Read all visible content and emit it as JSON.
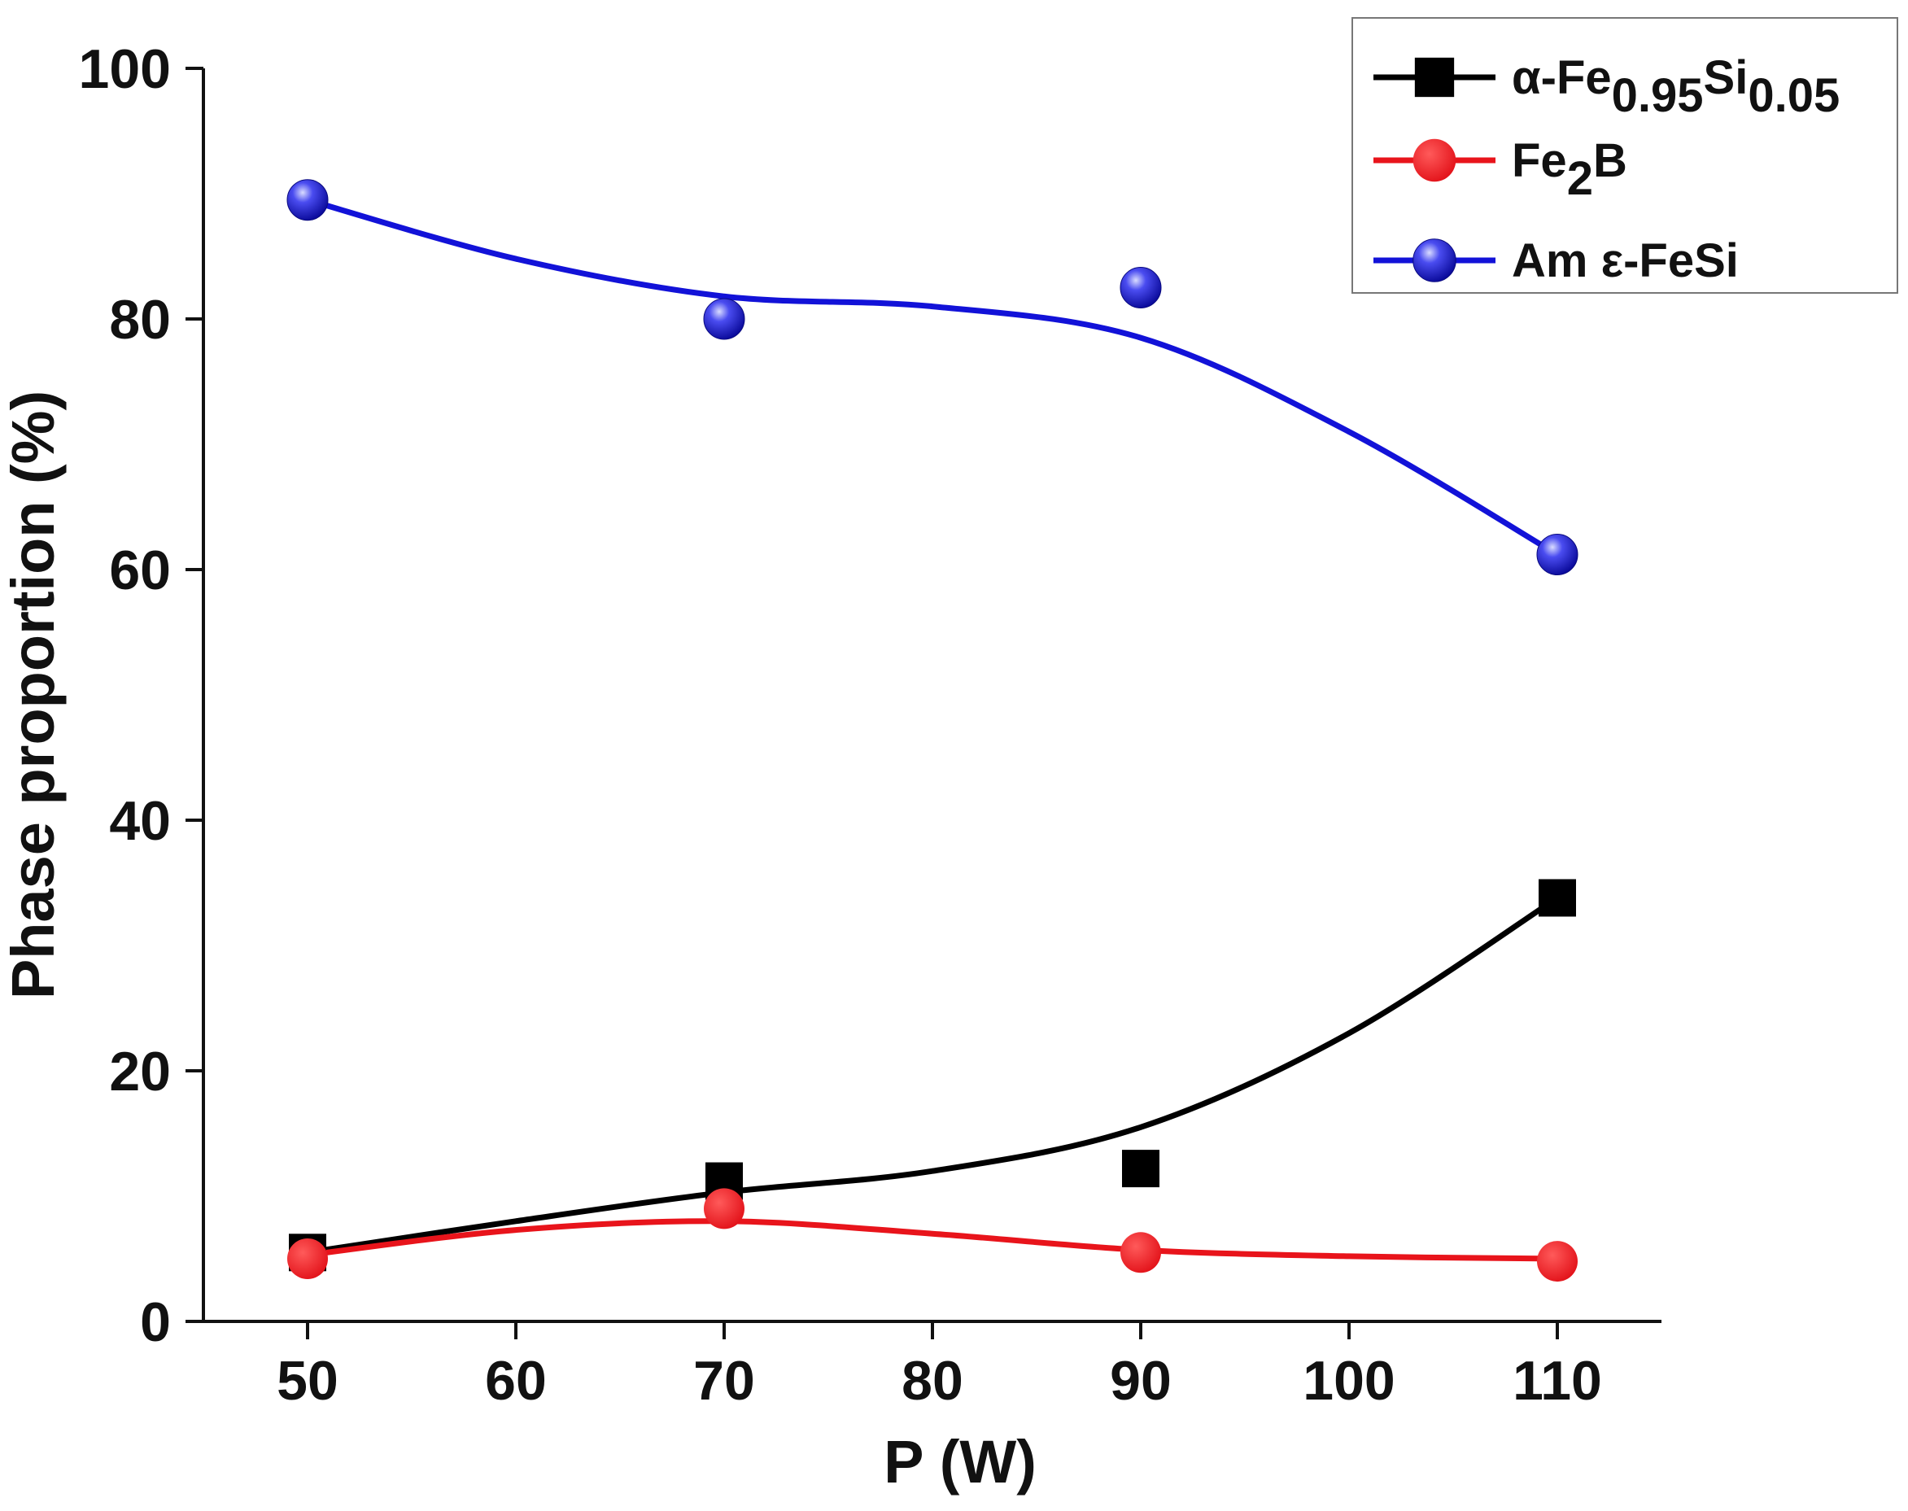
{
  "chart_data": {
    "type": "line",
    "title": "",
    "xlabel": "P (W)",
    "ylabel": "Phase proportion (%)",
    "xlim": [
      45,
      115
    ],
    "ylim": [
      0,
      100
    ],
    "xticks": [
      50,
      60,
      70,
      80,
      90,
      100,
      110
    ],
    "yticks": [
      0,
      20,
      40,
      60,
      80,
      100
    ],
    "grid": false,
    "legend_position": "top-right",
    "x": [
      50,
      70,
      90,
      110
    ],
    "series": [
      {
        "name": "α-Fe0.95Si0.05",
        "legend_parts": [
          {
            "text": "α-Fe",
            "sub": ""
          },
          {
            "text": "",
            "sub": "0.95"
          },
          {
            "text": "Si",
            "sub": ""
          },
          {
            "text": "",
            "sub": "0.05"
          }
        ],
        "marker": "square",
        "color": "#000000",
        "values": [
          5.5,
          11.2,
          12.2,
          33.8
        ],
        "fit_curve": [
          [
            50,
            5.5
          ],
          [
            60,
            8.0
          ],
          [
            70,
            10.3
          ],
          [
            80,
            12.0
          ],
          [
            90,
            15.5
          ],
          [
            100,
            23.0
          ],
          [
            110,
            33.8
          ]
        ]
      },
      {
        "name": "Fe2B",
        "legend_parts": [
          {
            "text": "Fe",
            "sub": ""
          },
          {
            "text": "",
            "sub": "2"
          },
          {
            "text": "B",
            "sub": ""
          }
        ],
        "marker": "circle",
        "color": "#e8141b",
        "values": [
          5.0,
          9.0,
          5.5,
          4.8
        ],
        "fit_curve": [
          [
            50,
            5.3
          ],
          [
            60,
            7.3
          ],
          [
            70,
            8.0
          ],
          [
            80,
            7.0
          ],
          [
            90,
            5.7
          ],
          [
            100,
            5.2
          ],
          [
            110,
            5.0
          ]
        ]
      },
      {
        "name": "Am ε-FeSi",
        "legend_parts": [
          {
            "text": "Am ε-FeSi",
            "sub": ""
          }
        ],
        "marker": "sphere",
        "color": "#1212d8",
        "values": [
          89.5,
          80.0,
          82.5,
          61.2
        ],
        "fit_curve": [
          [
            50,
            89.5
          ],
          [
            60,
            84.8
          ],
          [
            70,
            81.8
          ],
          [
            80,
            81.0
          ],
          [
            90,
            78.5
          ],
          [
            100,
            71.0
          ],
          [
            110,
            61.2
          ]
        ]
      }
    ]
  }
}
